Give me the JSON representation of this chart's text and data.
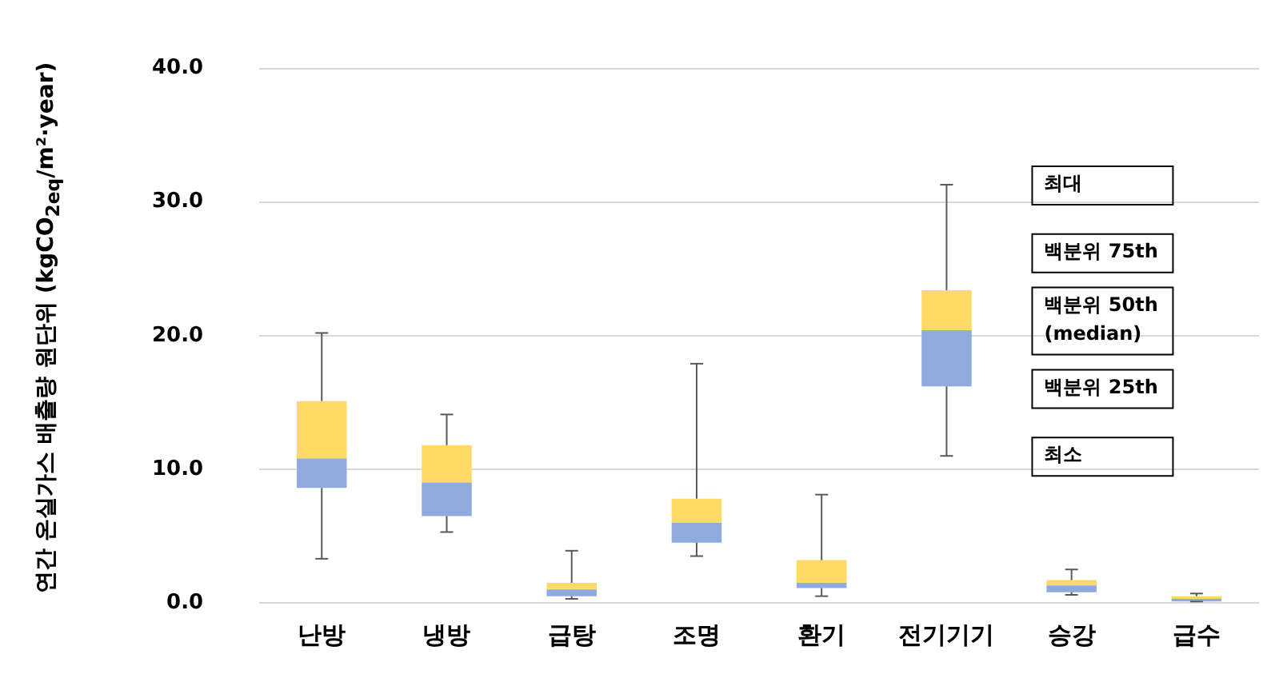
{
  "chart_data": {
    "type": "box",
    "ylabel": "연간 온실가스 배출량 원단위 (kgCO$_{2eq}$/m²·year)",
    "categories": [
      "난방",
      "냉방",
      "급탕",
      "조명",
      "환기",
      "전기기기",
      "승강",
      "급수"
    ],
    "color": "#ffd966",
    "colors": [
      "#8faadc",
      "#8faadc",
      "#8faadc",
      "#8faadc",
      "#8faadc",
      "#8faadc",
      "#8faadc",
      "#8faadc"
    ],
    "boxes": [
      {
        "low": 3.3,
        "q1": 8.6,
        "median": 10.8,
        "q3": 15.1,
        "high": 20.2
      },
      {
        "low": 5.3,
        "q1": 6.5,
        "median": 9.0,
        "q3": 11.8,
        "high": 14.1
      },
      {
        "low": 0.3,
        "q1": 0.5,
        "median": 1.0,
        "q3": 1.5,
        "high": 3.9
      },
      {
        "low": 3.5,
        "q1": 4.5,
        "median": 6.0,
        "q3": 7.8,
        "high": 17.9
      },
      {
        "low": 0.5,
        "q1": 1.1,
        "median": 1.5,
        "q3": 3.2,
        "high": 8.1
      },
      {
        "low": 11.0,
        "q1": 16.2,
        "median": 20.4,
        "q3": 23.4,
        "high": 31.3
      },
      {
        "low": 0.6,
        "q1": 0.8,
        "median": 1.3,
        "q3": 1.7,
        "high": 2.5
      },
      {
        "low": 0.1,
        "q1": 0.1,
        "median": 0.3,
        "q3": 0.5,
        "high": 0.7
      }
    ],
    "ylim": [
      0,
      40
    ],
    "yticks": [
      {
        "value": 0,
        "label": "0.0"
      },
      {
        "value": 10,
        "label": "10.0"
      },
      {
        "value": 20,
        "label": "20.0"
      },
      {
        "value": 30,
        "label": "30.0"
      },
      {
        "value": 40,
        "label": "40.0"
      }
    ],
    "grid": "y",
    "legend": false,
    "annotations": [
      "최대",
      "백분위 75th",
      "백분위 50th (median)",
      "백분위 25th",
      "최소"
    ]
  }
}
